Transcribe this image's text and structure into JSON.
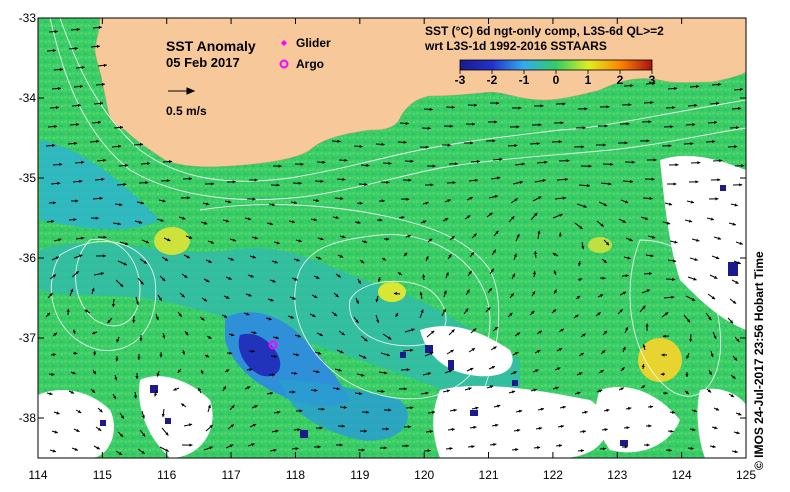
{
  "map": {
    "title": "SST Anomaly",
    "date": "05 Feb 2017",
    "scale_label": "0.5 m/s",
    "legend": {
      "glider": {
        "label": "Glider",
        "color": "#ff00ff"
      },
      "argo": {
        "label": "Argo",
        "color": "#ff00ff"
      }
    },
    "colorbar": {
      "title_line1": "SST (°C) 6d ngt-only comp, L3S-6d QL>=2",
      "title_line2": "wrt L3S-1d 1992-2016 SSTAARS",
      "ticks": [
        "-3",
        "-2",
        "-1",
        "0",
        "1",
        "2",
        "3"
      ],
      "min": -3,
      "max": 3
    },
    "x_ticks": [
      "114",
      "115",
      "116",
      "117",
      "118",
      "119",
      "120",
      "121",
      "122",
      "123",
      "124",
      "125"
    ],
    "y_ticks": [
      "-33",
      "-34",
      "-35",
      "-36",
      "-37",
      "-38"
    ],
    "credit": "© IMOS 24-Jul-2017 23:56 Hobart Time",
    "colors": {
      "land": "#f7c99a",
      "ocean_base": "#33cc66",
      "cloud": "#ffffff",
      "contour": "#ffffff",
      "arrow": "#000000",
      "marker": "#ff00ff"
    }
  }
}
